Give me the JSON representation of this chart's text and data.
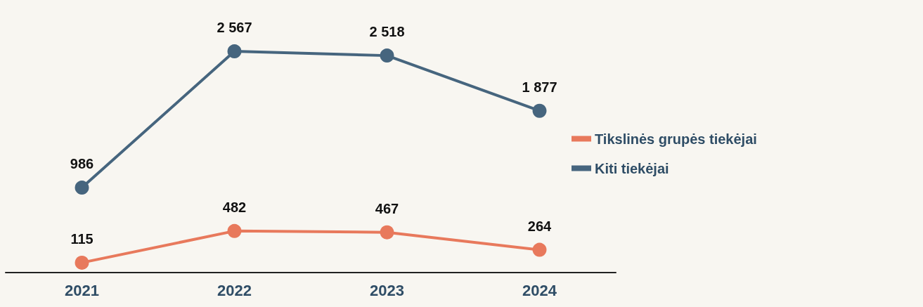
{
  "chart_data": {
    "type": "line",
    "categories": [
      "2021",
      "2022",
      "2023",
      "2024"
    ],
    "series": [
      {
        "name": "Tikslinės grupės tiekėjai",
        "color": "#e8795c",
        "values": [
          115,
          482,
          467,
          264
        ]
      },
      {
        "name": "Kiti tiekėjai",
        "color": "#46657e",
        "values": [
          986,
          2567,
          2518,
          1877
        ]
      }
    ],
    "data_labels": true,
    "legend": "right",
    "marker": "circle",
    "line_style": "solid",
    "tick_labels": "x"
  }
}
